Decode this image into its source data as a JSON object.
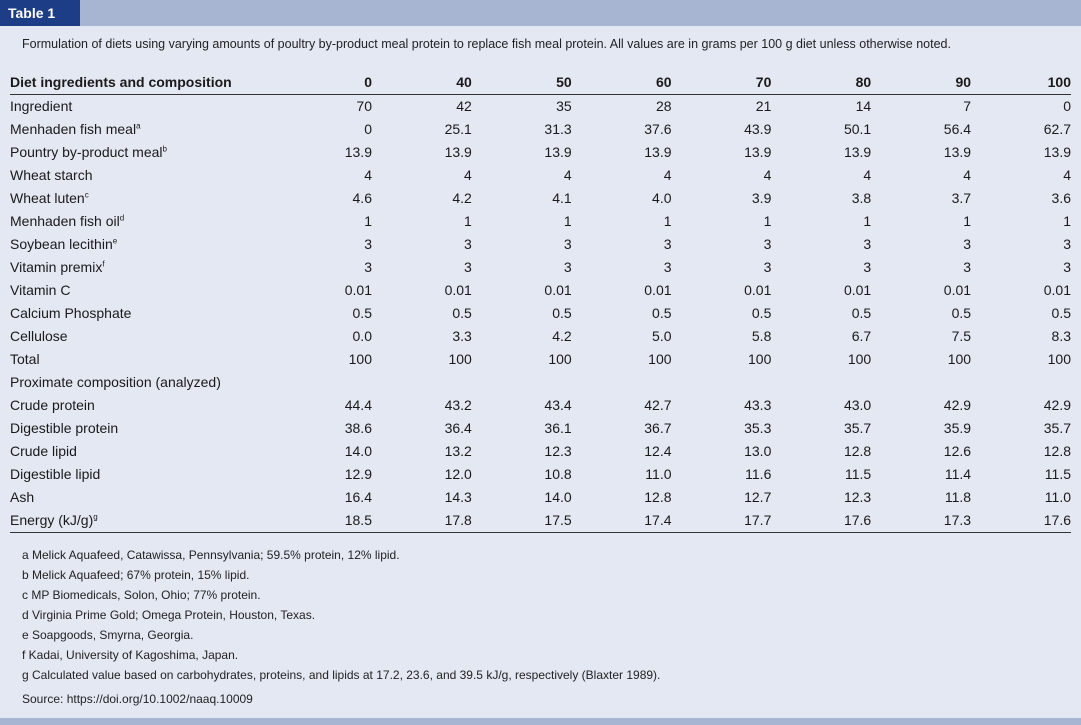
{
  "header": {
    "table_label": "Table 1"
  },
  "caption": "Formulation of diets using varying amounts of poultry by-product meal protein to replace fish meal protein. All values are in grams per 100 g diet unless otherwise noted.",
  "table": {
    "columns": [
      "Diet ingredients and composition",
      "0",
      "40",
      "50",
      "60",
      "70",
      "80",
      "90",
      "100"
    ],
    "rows": [
      {
        "label": "Ingredient",
        "sup": "",
        "indent": false,
        "values": [
          "70",
          "42",
          "35",
          "28",
          "21",
          "14",
          "7",
          "0"
        ]
      },
      {
        "label": "Menhaden fish meal",
        "sup": "a",
        "indent": true,
        "values": [
          "0",
          "25.1",
          "31.3",
          "37.6",
          "43.9",
          "50.1",
          "56.4",
          "62.7"
        ]
      },
      {
        "label": "Pountry by-product meal",
        "sup": "b",
        "indent": true,
        "values": [
          "13.9",
          "13.9",
          "13.9",
          "13.9",
          "13.9",
          "13.9",
          "13.9",
          "13.9"
        ]
      },
      {
        "label": "Wheat starch",
        "sup": "",
        "indent": true,
        "values": [
          "4",
          "4",
          "4",
          "4",
          "4",
          "4",
          "4",
          "4"
        ]
      },
      {
        "label": "Wheat luten",
        "sup": "c",
        "indent": true,
        "values": [
          "4.6",
          "4.2",
          "4.1",
          "4.0",
          "3.9",
          "3.8",
          "3.7",
          "3.6"
        ]
      },
      {
        "label": "Menhaden fish oil",
        "sup": "d",
        "indent": true,
        "values": [
          "1",
          "1",
          "1",
          "1",
          "1",
          "1",
          "1",
          "1"
        ]
      },
      {
        "label": "Soybean lecithin",
        "sup": "e",
        "indent": true,
        "values": [
          "3",
          "3",
          "3",
          "3",
          "3",
          "3",
          "3",
          "3"
        ]
      },
      {
        "label": "Vitamin premix",
        "sup": "f",
        "indent": true,
        "values": [
          "3",
          "3",
          "3",
          "3",
          "3",
          "3",
          "3",
          "3"
        ]
      },
      {
        "label": "Vitamin C",
        "sup": "",
        "indent": true,
        "values": [
          "0.01",
          "0.01",
          "0.01",
          "0.01",
          "0.01",
          "0.01",
          "0.01",
          "0.01"
        ]
      },
      {
        "label": "Calcium Phosphate",
        "sup": "",
        "indent": true,
        "values": [
          "0.5",
          "0.5",
          "0.5",
          "0.5",
          "0.5",
          "0.5",
          "0.5",
          "0.5"
        ]
      },
      {
        "label": "Cellulose",
        "sup": "",
        "indent": true,
        "values": [
          "0.0",
          "3.3",
          "4.2",
          "5.0",
          "5.8",
          "6.7",
          "7.5",
          "8.3"
        ]
      },
      {
        "label": "Total",
        "sup": "",
        "indent": false,
        "values": [
          "100",
          "100",
          "100",
          "100",
          "100",
          "100",
          "100",
          "100"
        ]
      },
      {
        "label": "Proximate composition (analyzed)",
        "sup": "",
        "indent": true,
        "values": [
          "",
          "",
          "",
          "",
          "",
          "",
          "",
          ""
        ]
      },
      {
        "label": "Crude protein",
        "sup": "",
        "indent": true,
        "values": [
          "44.4",
          "43.2",
          "43.4",
          "42.7",
          "43.3",
          "43.0",
          "42.9",
          "42.9"
        ]
      },
      {
        "label": "Digestible protein",
        "sup": "",
        "indent": true,
        "values": [
          "38.6",
          "36.4",
          "36.1",
          "36.7",
          "35.3",
          "35.7",
          "35.9",
          "35.7"
        ]
      },
      {
        "label": "Crude lipid",
        "sup": "",
        "indent": true,
        "values": [
          "14.0",
          "13.2",
          "12.3",
          "12.4",
          "13.0",
          "12.8",
          "12.6",
          "12.8"
        ]
      },
      {
        "label": "Digestible lipid",
        "sup": "",
        "indent": true,
        "values": [
          "12.9",
          "12.0",
          "10.8",
          "11.0",
          "11.6",
          "11.5",
          "11.4",
          "11.5"
        ]
      },
      {
        "label": "Ash",
        "sup": "",
        "indent": true,
        "values": [
          "16.4",
          "14.3",
          "14.0",
          "12.8",
          "12.7",
          "12.3",
          "11.8",
          "11.0"
        ]
      },
      {
        "label": "Energy (kJ/g)",
        "sup": "g",
        "indent": true,
        "values": [
          "18.5",
          "17.8",
          "17.5",
          "17.4",
          "17.7",
          "17.6",
          "17.3",
          "17.6"
        ]
      }
    ]
  },
  "footnotes": [
    "a Melick Aquafeed, Catawissa, Pennsylvania; 59.5% protein, 12% lipid.",
    "b Melick Aquafeed; 67% protein, 15% lipid.",
    "c MP Biomedicals, Solon, Ohio; 77% protein.",
    "d Virginia Prime Gold; Omega Protein, Houston, Texas.",
    "e Soapgoods, Smyrna, Georgia.",
    "f Kadai, University of Kagoshima, Japan.",
    "g Calculated value based on carbohydrates, proteins, and lipids at 17.2, 23.6, and 39.5 kJ/g, respectively (Blaxter 1989)."
  ],
  "source": "Source: https://doi.org/10.1002/naaq.10009",
  "colors": {
    "header_dark": "#1d3e87",
    "header_light": "#a7b5d3",
    "background": "#e3e8f3"
  }
}
